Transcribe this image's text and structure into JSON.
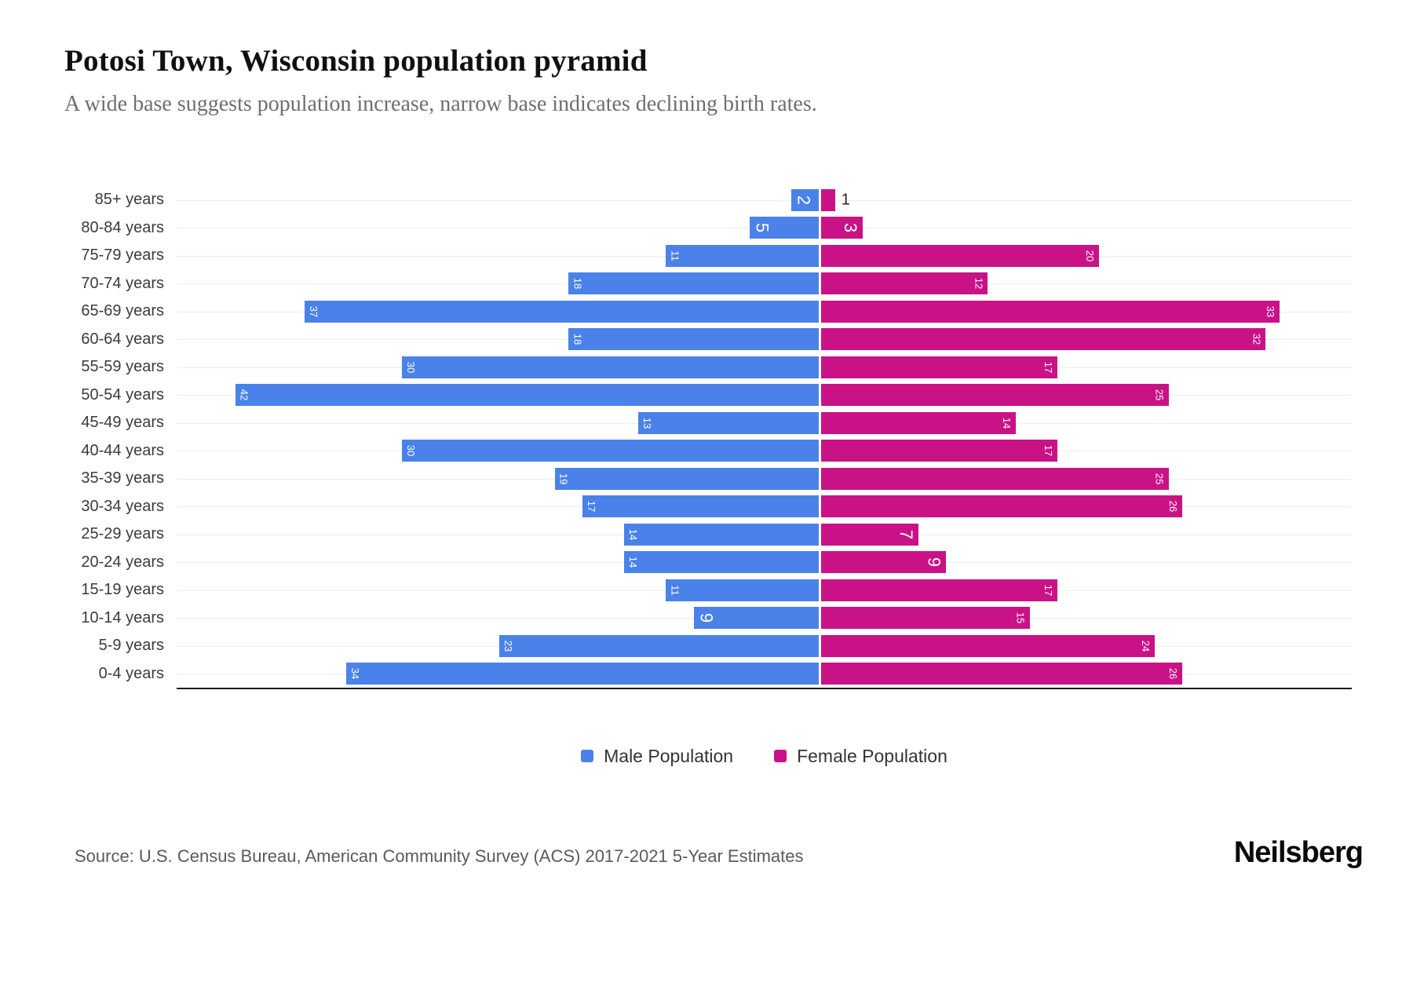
{
  "header": {
    "title": "Potosi Town, Wisconsin population pyramid",
    "subtitle": "A wide base suggests population increase, narrow base indicates declining birth rates."
  },
  "chart_data": {
    "type": "bar",
    "subtype": "population-pyramid",
    "orientation": "horizontal",
    "categories": [
      "85+ years",
      "80-84 years",
      "75-79 years",
      "70-74 years",
      "65-69 years",
      "60-64 years",
      "55-59 years",
      "50-54 years",
      "45-49 years",
      "40-44 years",
      "35-39 years",
      "30-34 years",
      "25-29 years",
      "20-24 years",
      "15-19 years",
      "10-14 years",
      "5-9 years",
      "0-4 years"
    ],
    "series": [
      {
        "name": "Male Population",
        "side": "left",
        "color": "#4a82e9",
        "values": [
          2,
          5,
          11,
          18,
          37,
          18,
          30,
          42,
          13,
          30,
          19,
          17,
          14,
          14,
          11,
          9,
          23,
          34
        ]
      },
      {
        "name": "Female Population",
        "side": "right",
        "color": "#ca1287",
        "values": [
          1,
          3,
          20,
          12,
          33,
          32,
          17,
          25,
          14,
          17,
          25,
          26,
          7,
          9,
          17,
          15,
          24,
          26
        ]
      }
    ],
    "value_labels": "inside-bar-ends, rotated 90deg, white; shown outside in black when bar too short",
    "grid": true,
    "gridline_color": "#ededed",
    "axis_line_color": "#1c1c1c",
    "x_ticks_visible": false,
    "legend_position": "bottom"
  },
  "footer": {
    "source": "Source: U.S. Census Bureau, American Community Survey (ACS) 2017-2021 5-Year Estimates",
    "brand": "Neilsberg"
  }
}
